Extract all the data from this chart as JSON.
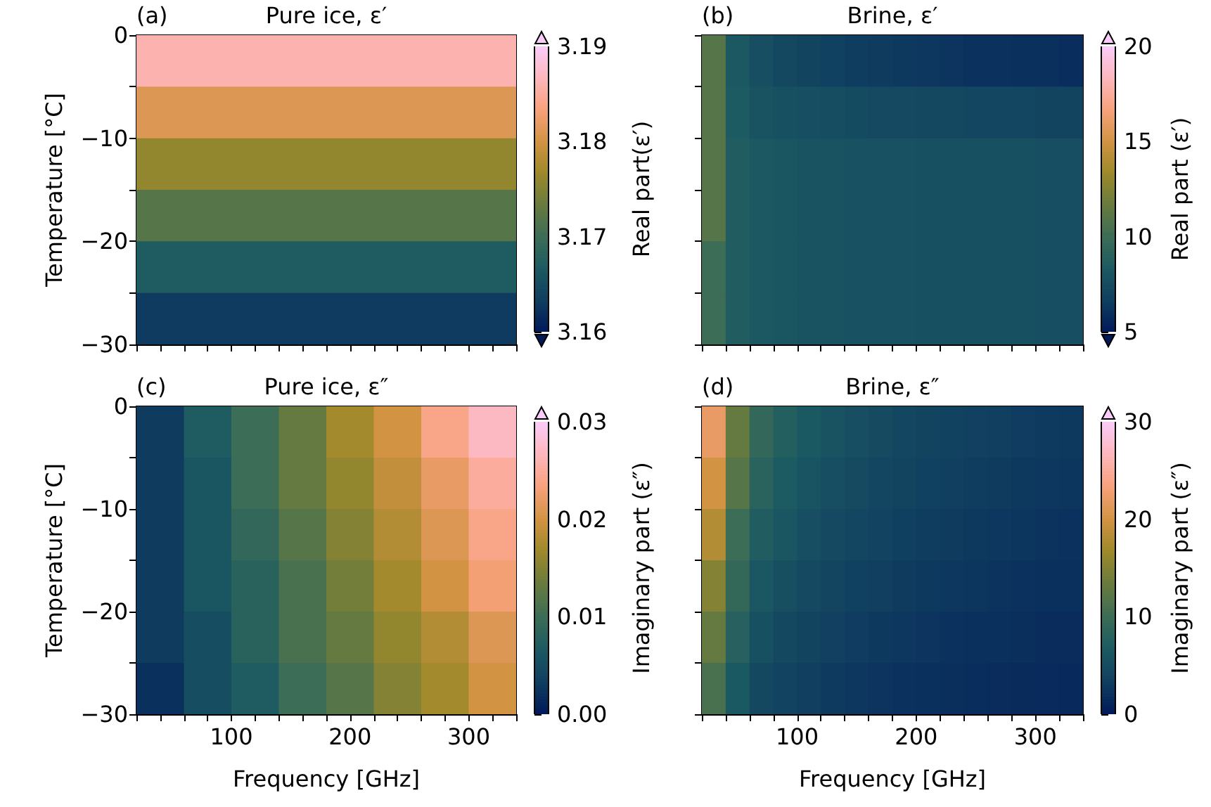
{
  "chart_data": [
    {
      "type": "heatmap",
      "title": "Pure ice, ε′",
      "annotations": [
        "(a)"
      ],
      "ylabel": "Temperature [°C]",
      "clabel": "Real part(ε′)",
      "xlim": [
        20,
        340
      ],
      "xticks": [
        {
          "value": 20,
          "label": null
        },
        {
          "value": 40,
          "label": null
        },
        {
          "value": 60,
          "label": null
        },
        {
          "value": 80,
          "label": null
        },
        100,
        {
          "value": 120,
          "label": null
        },
        {
          "value": 140,
          "label": null
        },
        {
          "value": 160,
          "label": null
        },
        {
          "value": 180,
          "label": null
        },
        200,
        {
          "value": 220,
          "label": null
        },
        {
          "value": 240,
          "label": null
        },
        {
          "value": 260,
          "label": null
        },
        {
          "value": 280,
          "label": null
        },
        300,
        {
          "value": 320,
          "label": null
        },
        {
          "value": 340,
          "label": null
        }
      ],
      "ylim": [
        -30,
        0
      ],
      "yticks": [
        0,
        {
          "value": -5,
          "label": null
        },
        -10,
        {
          "value": -15,
          "label": null
        },
        -20,
        {
          "value": -25,
          "label": null
        },
        -30
      ],
      "tick_labels": "y",
      "clim": [
        3.16,
        3.19
      ],
      "cticks": [
        3.16,
        3.17,
        3.18,
        3.19
      ],
      "cells": [
        [
          3.186
        ],
        [
          3.181
        ],
        [
          3.176
        ],
        [
          3.172
        ],
        [
          3.167
        ],
        [
          3.163
        ]
      ]
    },
    {
      "type": "heatmap",
      "title": "Brine, ε′",
      "annotations": [
        "(b)"
      ],
      "clabel": "Real part (ε′)",
      "xlim": [
        20,
        340
      ],
      "xticks": [
        {
          "value": 20,
          "label": null
        },
        {
          "value": 40,
          "label": null
        },
        {
          "value": 60,
          "label": null
        },
        {
          "value": 80,
          "label": null
        },
        100,
        {
          "value": 120,
          "label": null
        },
        {
          "value": 140,
          "label": null
        },
        {
          "value": 160,
          "label": null
        },
        {
          "value": 180,
          "label": null
        },
        200,
        {
          "value": 220,
          "label": null
        },
        {
          "value": 240,
          "label": null
        },
        {
          "value": 260,
          "label": null
        },
        {
          "value": 280,
          "label": null
        },
        300,
        {
          "value": 320,
          "label": null
        },
        {
          "value": 340,
          "label": null
        }
      ],
      "ylim": [
        -30,
        0
      ],
      "yticks": [
        0,
        {
          "value": -5,
          "label": null
        },
        -10,
        {
          "value": -15,
          "label": null
        },
        -20,
        {
          "value": -25,
          "label": null
        },
        -30
      ],
      "tick_labels": false,
      "clim": [
        5,
        20
      ],
      "cticks": [
        5,
        10,
        15,
        20
      ],
      "cells": [
        [
          11,
          8.2,
          7.6,
          7.2,
          7.0,
          6.8,
          6.6,
          6.5,
          6.4,
          6.3,
          6.2,
          6.1,
          6.1,
          6.0,
          6.0,
          5.9
        ],
        [
          11,
          8.4,
          7.9,
          7.7,
          7.6,
          7.5,
          7.4,
          7.3,
          7.3,
          7.2,
          7.2,
          7.1,
          7.1,
          7.1,
          7.0,
          7.0
        ],
        [
          11,
          8.6,
          8.2,
          8.0,
          7.9,
          7.9,
          7.8,
          7.8,
          7.8,
          7.7,
          7.7,
          7.7,
          7.7,
          7.7,
          7.6,
          7.6
        ],
        [
          11,
          8.6,
          8.2,
          8.0,
          7.9,
          7.9,
          7.8,
          7.8,
          7.8,
          7.7,
          7.7,
          7.7,
          7.7,
          7.7,
          7.6,
          7.6
        ],
        [
          10,
          8.6,
          8.2,
          8.0,
          7.9,
          7.9,
          7.8,
          7.8,
          7.8,
          7.7,
          7.7,
          7.7,
          7.7,
          7.7,
          7.6,
          7.6
        ],
        [
          10,
          8.6,
          8.2,
          8.0,
          7.9,
          7.9,
          7.8,
          7.8,
          7.8,
          7.7,
          7.7,
          7.7,
          7.7,
          7.7,
          7.6,
          7.6
        ]
      ]
    },
    {
      "type": "heatmap",
      "title": "Pure ice, ε″",
      "annotations": [
        "(c)"
      ],
      "xlabel": "Frequency [GHz]",
      "ylabel": "Temperature [°C]",
      "clabel": "Imaginary part (ε″)",
      "xlim": [
        20,
        340
      ],
      "xticks": [
        {
          "value": 20,
          "label": null
        },
        {
          "value": 40,
          "label": null
        },
        {
          "value": 60,
          "label": null
        },
        {
          "value": 80,
          "label": null
        },
        100,
        {
          "value": 120,
          "label": null
        },
        {
          "value": 140,
          "label": null
        },
        {
          "value": 160,
          "label": null
        },
        {
          "value": 180,
          "label": null
        },
        200,
        {
          "value": 220,
          "label": null
        },
        {
          "value": 240,
          "label": null
        },
        {
          "value": 260,
          "label": null
        },
        {
          "value": 280,
          "label": null
        },
        300,
        {
          "value": 320,
          "label": null
        },
        {
          "value": 340,
          "label": null
        }
      ],
      "ylim": [
        -30,
        0
      ],
      "yticks": [
        0,
        {
          "value": -5,
          "label": null
        },
        -10,
        {
          "value": -15,
          "label": null
        },
        -20,
        {
          "value": -25,
          "label": null
        },
        -30
      ],
      "clim": [
        0,
        0.03
      ],
      "cticks": [
        {
          "value": 0,
          "label": "0.00"
        },
        0.01,
        0.02,
        0.03
      ],
      "cells": [
        [
          0.003,
          0.007,
          0.01,
          0.013,
          0.017,
          0.02,
          0.024,
          0.027
        ],
        [
          0.003,
          0.006,
          0.01,
          0.013,
          0.016,
          0.019,
          0.022,
          0.025
        ],
        [
          0.003,
          0.006,
          0.009,
          0.012,
          0.015,
          0.018,
          0.021,
          0.024
        ],
        [
          0.003,
          0.006,
          0.008,
          0.011,
          0.014,
          0.017,
          0.02,
          0.023
        ],
        [
          0.003,
          0.005,
          0.008,
          0.011,
          0.013,
          0.016,
          0.018,
          0.021
        ],
        [
          0.002,
          0.005,
          0.007,
          0.01,
          0.012,
          0.015,
          0.017,
          0.02
        ]
      ]
    },
    {
      "type": "heatmap",
      "title": "Brine, ε″",
      "annotations": [
        "(d)"
      ],
      "xlabel": "Frequency [GHz]",
      "clabel": "Imaginary part (ε″)",
      "xlim": [
        20,
        340
      ],
      "xticks": [
        {
          "value": 20,
          "label": null
        },
        {
          "value": 40,
          "label": null
        },
        {
          "value": 60,
          "label": null
        },
        {
          "value": 80,
          "label": null
        },
        100,
        {
          "value": 120,
          "label": null
        },
        {
          "value": 140,
          "label": null
        },
        {
          "value": 160,
          "label": null
        },
        {
          "value": 180,
          "label": null
        },
        200,
        {
          "value": 220,
          "label": null
        },
        {
          "value": 240,
          "label": null
        },
        {
          "value": 260,
          "label": null
        },
        {
          "value": 280,
          "label": null
        },
        300,
        {
          "value": 320,
          "label": null
        },
        {
          "value": 340,
          "label": null
        }
      ],
      "ylim": [
        -30,
        0
      ],
      "yticks": [
        0,
        {
          "value": -5,
          "label": null
        },
        -10,
        {
          "value": -15,
          "label": null
        },
        -20,
        {
          "value": -25,
          "label": null
        },
        -30
      ],
      "tick_labels": "x",
      "clim": [
        0,
        30
      ],
      "cticks": [
        0,
        10,
        20,
        30
      ],
      "cells": [
        [
          22,
          13,
          9,
          7.5,
          6.5,
          5.8,
          5.2,
          4.7,
          4.3,
          4.0,
          3.7,
          3.5,
          3.3,
          3.1,
          2.9,
          2.8
        ],
        [
          20,
          12,
          8.1,
          6.8,
          5.9,
          5.2,
          4.7,
          4.2,
          3.9,
          3.6,
          3.3,
          3.2,
          3.0,
          2.8,
          2.6,
          2.5
        ],
        [
          18,
          10,
          7.2,
          6.0,
          5.2,
          4.6,
          4.2,
          3.8,
          3.4,
          3.2,
          3.0,
          2.8,
          2.6,
          2.5,
          2.3,
          2.2
        ],
        [
          15,
          9.1,
          6.3,
          5.3,
          4.6,
          4.1,
          3.6,
          3.3,
          3.0,
          2.8,
          2.6,
          2.5,
          2.3,
          2.2,
          2.0,
          2.0
        ],
        [
          13,
          7.8,
          5.4,
          4.5,
          3.9,
          3.5,
          3.1,
          2.8,
          2.6,
          2.4,
          2.2,
          2.1,
          2.0,
          1.9,
          1.7,
          1.7
        ],
        [
          11,
          6.5,
          4.5,
          3.8,
          3.3,
          2.9,
          2.6,
          2.4,
          2.2,
          2.0,
          1.9,
          1.8,
          1.7,
          1.6,
          1.5,
          1.4
        ]
      ]
    }
  ]
}
